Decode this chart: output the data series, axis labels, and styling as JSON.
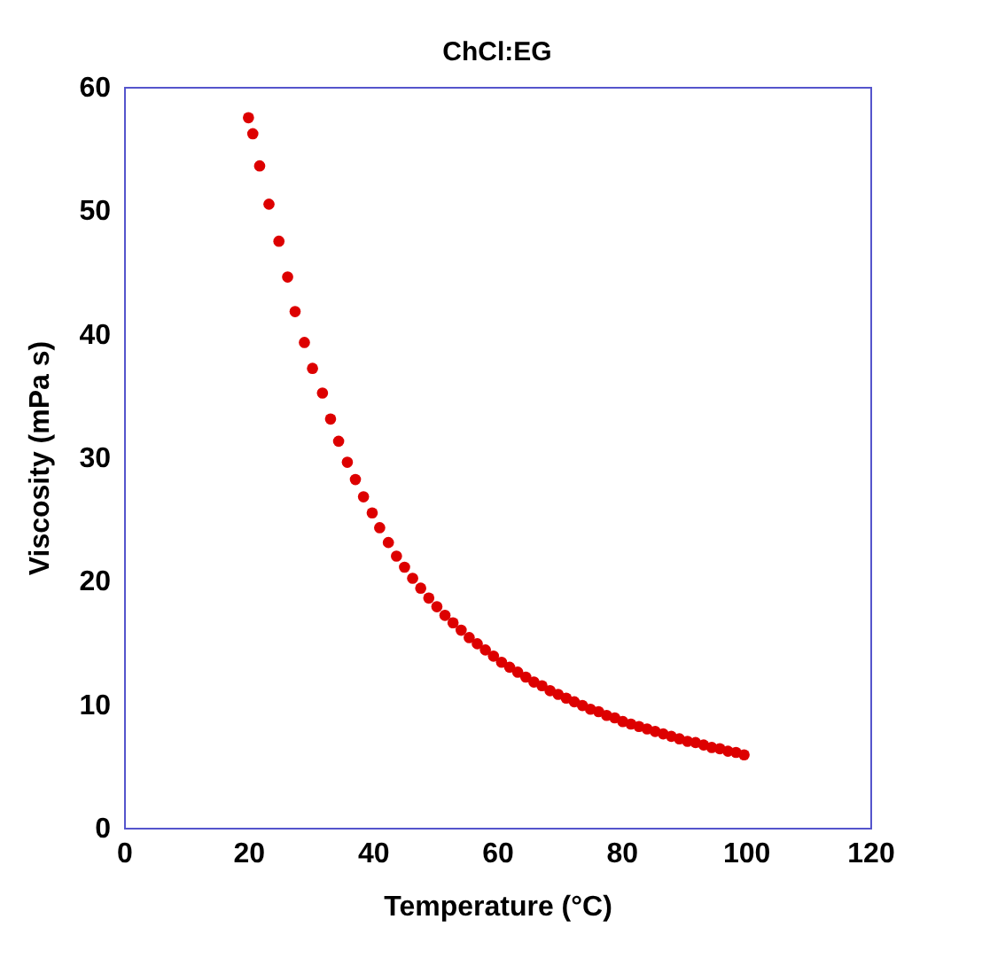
{
  "chart_data": {
    "type": "scatter",
    "title": "ChCl:EG",
    "xlabel": "Temperature (°C)",
    "ylabel": "Viscosity (mPa s)",
    "x": [
      20,
      20.7,
      21.8,
      23.3,
      24.9,
      26.3,
      27.5,
      29.0,
      30.3,
      31.9,
      33.2,
      34.5,
      35.9,
      37.2,
      38.5,
      39.9,
      41.1,
      42.5,
      43.8,
      45.1,
      46.4,
      47.7,
      49.0,
      50.3,
      51.6,
      52.9,
      54.2,
      55.5,
      56.8,
      58.1,
      59.4,
      60.7,
      62.0,
      63.3,
      64.6,
      65.9,
      67.2,
      68.5,
      69.8,
      71.1,
      72.4,
      73.7,
      75.0,
      76.3,
      77.6,
      78.9,
      80.2,
      81.5,
      82.8,
      84.1,
      85.4,
      86.7,
      88.0,
      89.3,
      90.6,
      91.9,
      93.2,
      94.5,
      95.8,
      97.1,
      98.4,
      99.7
    ],
    "series": [
      {
        "color": "#dd0000",
        "values": [
          57.5,
          56.2,
          53.6,
          50.5,
          47.5,
          44.6,
          41.8,
          39.3,
          37.2,
          35.2,
          33.1,
          31.3,
          29.6,
          28.2,
          26.8,
          25.5,
          24.3,
          23.1,
          22.0,
          21.1,
          20.2,
          19.4,
          18.6,
          17.9,
          17.2,
          16.6,
          16.0,
          15.4,
          14.9,
          14.4,
          13.9,
          13.4,
          13.0,
          12.6,
          12.2,
          11.8,
          11.5,
          11.1,
          10.8,
          10.5,
          10.2,
          9.9,
          9.6,
          9.4,
          9.1,
          8.9,
          8.6,
          8.4,
          8.2,
          8.0,
          7.8,
          7.6,
          7.4,
          7.2,
          7.0,
          6.9,
          6.7,
          6.5,
          6.4,
          6.2,
          6.1,
          5.9
        ]
      }
    ],
    "xlim": [
      0,
      120
    ],
    "xticks": [
      0,
      20,
      40,
      60,
      80,
      100,
      120
    ],
    "ylim": [
      0,
      60
    ],
    "yticks": [
      0,
      10,
      20,
      30,
      40,
      50,
      60
    ],
    "grid": false
  }
}
